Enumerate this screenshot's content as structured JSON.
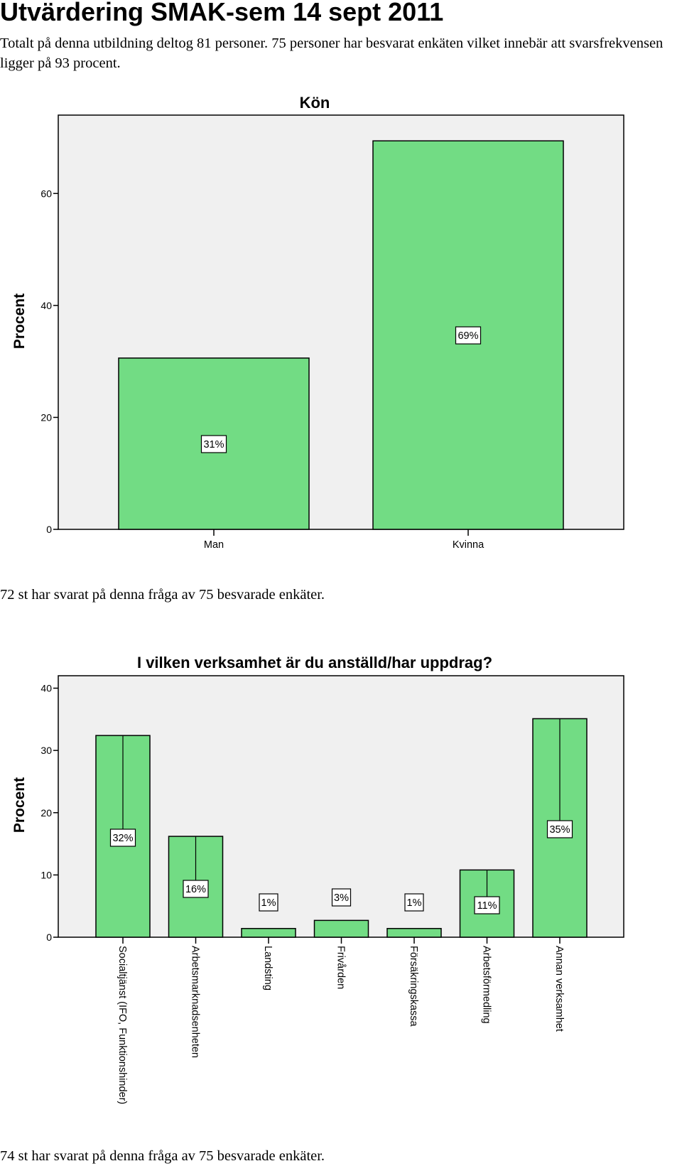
{
  "page": {
    "title": "Utvärdering SMAK-sem 14 sept 2011",
    "intro": "Totalt på denna utbildning deltog 81 personer. 75 personer har besvarat enkäten vilket innebär att svarsfrekvensen ligger på 93 procent.",
    "note1": "72 st har svarat på denna fråga av 75 besvarade enkäter.",
    "note2": "74 st har svarat på denna fråga av 75 besvarade enkäter."
  },
  "colors": {
    "bar": "#72dc84",
    "plot_bg": "#f0f0f0",
    "axis": "#000000"
  },
  "chart_data": [
    {
      "type": "bar",
      "title": "Kön",
      "ylabel": "Procent",
      "xlabel": "",
      "ylim": [
        0,
        74
      ],
      "yticks": [
        0,
        20,
        40,
        60
      ],
      "categories": [
        "Man",
        "Kvinna"
      ],
      "values": [
        30.6,
        69.4
      ],
      "labels": [
        "31%",
        "69%"
      ],
      "grid": false,
      "legend": "none"
    },
    {
      "type": "bar",
      "title": "I vilken verksamhet är du anställd/har uppdrag?",
      "ylabel": "Procent",
      "xlabel": "",
      "ylim": [
        0,
        42
      ],
      "yticks": [
        0,
        10,
        20,
        30,
        40
      ],
      "categories": [
        "Socialtjänst (IFO, Funktionshinder)",
        "Arbetsmarknadsenheten",
        "Landsting",
        "Frivården",
        "Försäkringskassa",
        "Arbetsförmedling",
        "Annan verksamhet"
      ],
      "values": [
        32.4,
        16.2,
        1.4,
        2.7,
        1.4,
        10.8,
        35.1
      ],
      "labels": [
        "32%",
        "16%",
        "1%",
        "3%",
        "1%",
        "11%",
        "35%"
      ],
      "grid": false,
      "legend": "none"
    }
  ]
}
